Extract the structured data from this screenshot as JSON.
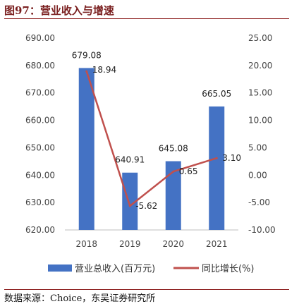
{
  "header": {
    "title": "图97：营业收入与增速"
  },
  "footer": {
    "source": "数据来源：Choice，东吴证券研究所"
  },
  "chart_data": {
    "type": "bar",
    "categories": [
      "2018",
      "2019",
      "2020",
      "2021"
    ],
    "series": [
      {
        "name": "营业总收入(百万元)",
        "type": "bar",
        "axis": "left",
        "values": [
          679.08,
          640.91,
          645.08,
          665.05
        ],
        "labels": [
          "679.08",
          "640.91",
          "645.08",
          "665.05"
        ],
        "color": "#4472c4"
      },
      {
        "name": "同比增长(%)",
        "type": "line",
        "axis": "right",
        "values": [
          18.94,
          -5.62,
          0.65,
          3.1
        ],
        "labels": [
          "18.94",
          "-5.62",
          "0.65",
          "3.10"
        ],
        "color": "#c0504d"
      }
    ],
    "y_left": {
      "lim": [
        620,
        690
      ],
      "ticks": [
        "620.00",
        "630.00",
        "640.00",
        "650.00",
        "660.00",
        "670.00",
        "680.00",
        "690.00"
      ]
    },
    "y_right": {
      "lim": [
        -10,
        25
      ],
      "ticks": [
        "-10.00",
        "-5.00",
        "0.00",
        "5.00",
        "10.00",
        "15.00",
        "20.00",
        "25.00"
      ]
    },
    "grid": false,
    "legend": "bottom"
  }
}
